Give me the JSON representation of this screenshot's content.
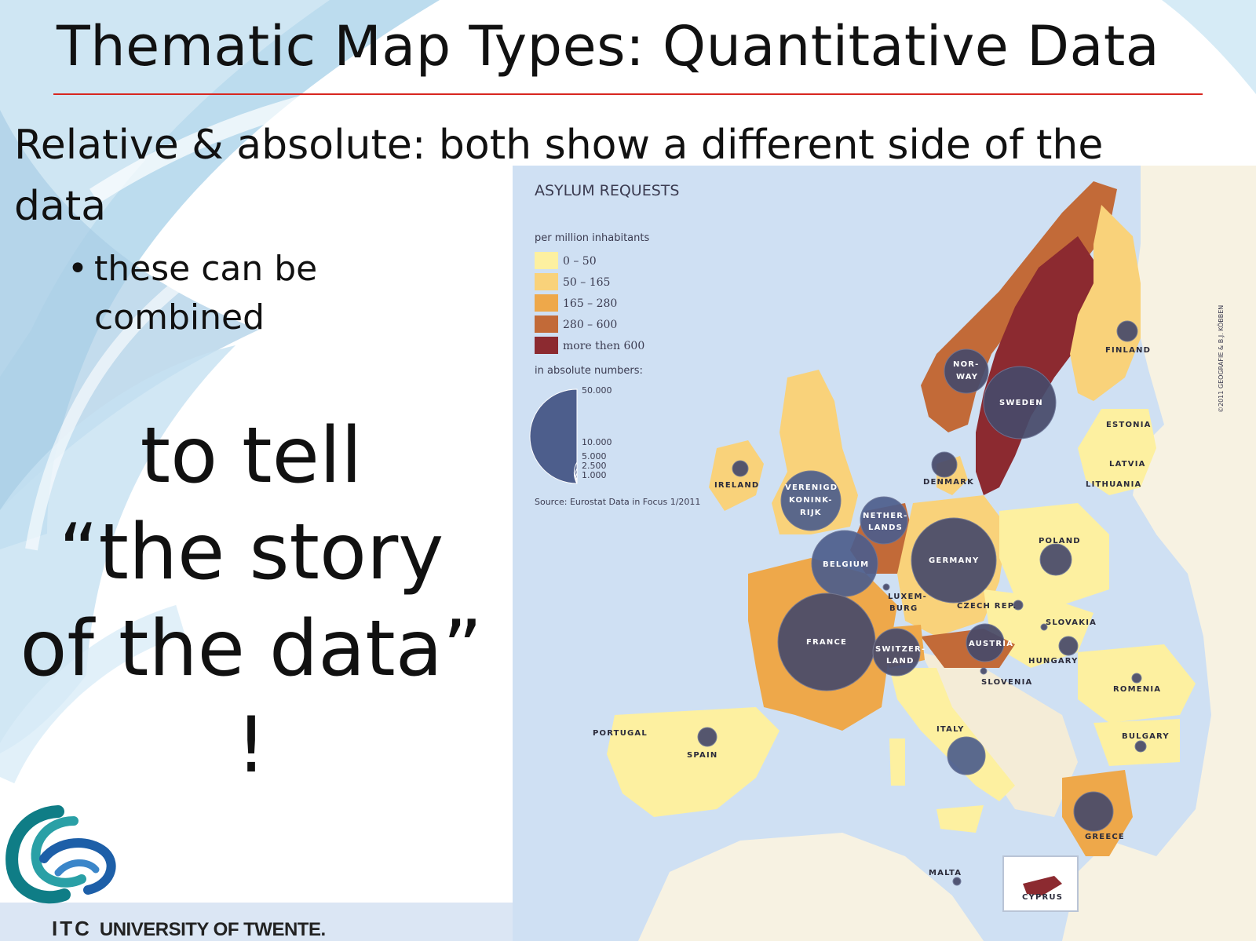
{
  "slide": {
    "title": "Thematic Map Types: Quantitative Data",
    "subtitle": "Relative & absolute: both show a different side of the data",
    "bullet": "these can be combined",
    "story_lines": [
      "to tell",
      "“the story",
      "of the data”",
      "!"
    ],
    "footer": {
      "logo_mark": "ITC",
      "institution": "UNIVERSITY OF TWENTE."
    }
  },
  "map": {
    "title": "ASYLUM REQUESTS",
    "legend": {
      "choropleth_title": "per million inhabitants",
      "classes": [
        {
          "label": "0 – 50",
          "color": "#fdf0a0"
        },
        {
          "label": "50 – 165",
          "color": "#f9d27a"
        },
        {
          "label": "165 – 280",
          "color": "#eea84a"
        },
        {
          "label": "280 – 600",
          "color": "#c26a38"
        },
        {
          "label": "more then 600",
          "color": "#8c2a30"
        }
      ],
      "symbol_title": "in absolute numbers:",
      "symbol_values": [
        "50.000",
        "10.000",
        "5.000",
        "2.500",
        "1.000"
      ]
    },
    "source": "Source: Eurostat Data in Focus 1/2011",
    "copyright": "©2011 GEOGRAFIE & B.J. KÖBBEN",
    "symbol_color": "#3b4a7a",
    "country_labels": [
      "NOR-",
      "WAY",
      "SWEDEN",
      "FINLAND",
      "ESTONIA",
      "LATVIA",
      "LITHUANIA",
      "DENMARK",
      "IRELAND",
      "VERENIGD",
      "KONINK-",
      "RIJK",
      "NETHER-",
      "LANDS",
      "BELGIUM",
      "GERMANY",
      "POLAND",
      "LUXEM-",
      "BURG",
      "CZECH REP.",
      "SLOVAKIA",
      "FRANCE",
      "SWITZER-",
      "LAND",
      "AUSTRIA",
      "HUNGARY",
      "SLOVENIA",
      "ROMENIA",
      "PORTUGAL",
      "SPAIN",
      "ITALY",
      "BULGARY",
      "GREECE",
      "MALTA",
      "CYPRUS"
    ]
  }
}
